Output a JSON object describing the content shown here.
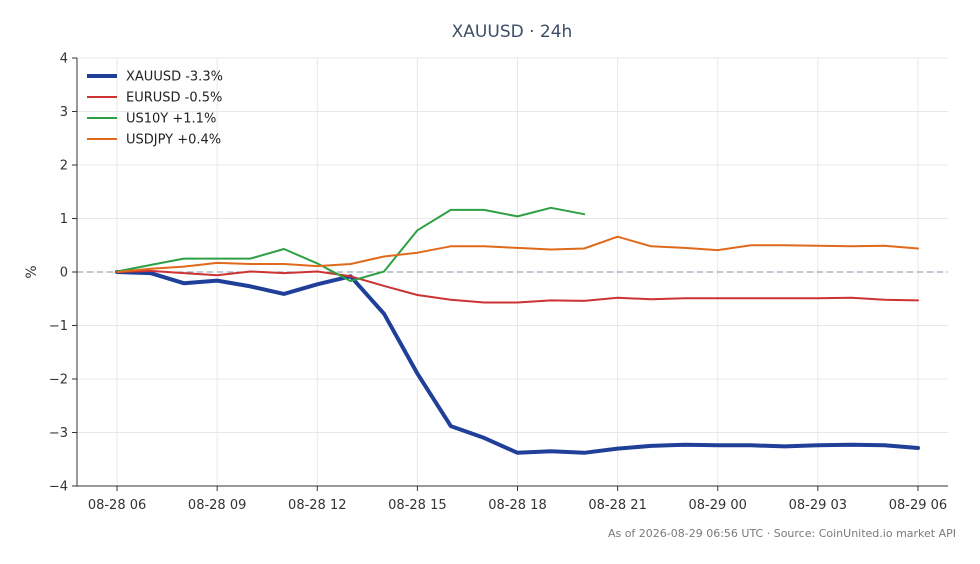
{
  "chart_data": {
    "type": "line",
    "title": "XAUUSD · 24h",
    "ylabel": "%",
    "xlabel": "",
    "ylim": [
      -4,
      4
    ],
    "yticks": [
      4,
      3,
      2,
      1,
      0,
      -1,
      -2,
      -3,
      -4
    ],
    "ytick_labels": [
      "4",
      "3",
      "2",
      "1",
      "0",
      "−1",
      "−2",
      "−3",
      "−4"
    ],
    "xlim": [
      -1.2,
      24.9
    ],
    "x": [
      0,
      1,
      2,
      3,
      4,
      5,
      6,
      7,
      8,
      9,
      10,
      11,
      12,
      13,
      14,
      15,
      16,
      17,
      18,
      19,
      20,
      21,
      22,
      23,
      24
    ],
    "xticks": [
      0,
      3,
      6,
      9,
      12,
      15,
      18,
      21,
      24
    ],
    "xtick_labels": [
      "08-28 06",
      "08-28 09",
      "08-28 12",
      "08-28 15",
      "08-28 18",
      "08-28 21",
      "08-29 00",
      "08-29 03",
      "08-29 06"
    ],
    "grid": true,
    "zero_line": true,
    "legend_position": "top-left",
    "series": [
      {
        "name": "XAUUSD -3.3%",
        "color": "#1f3f99",
        "line_width": 4,
        "values": [
          0,
          -0.02,
          -0.21,
          -0.16,
          -0.27,
          -0.41,
          -0.23,
          -0.08,
          -0.78,
          -1.9,
          -2.88,
          -3.1,
          -3.38,
          -3.35,
          -3.38,
          -3.3,
          -3.25,
          -3.23,
          -3.24,
          -3.24,
          -3.26,
          -3.24,
          -3.23,
          -3.24,
          -3.29
        ]
      },
      {
        "name": "EURUSD -0.5%",
        "color": "#cc3333",
        "line_width": 2,
        "values": [
          0,
          0.02,
          -0.02,
          -0.06,
          0.01,
          -0.02,
          0.01,
          -0.08,
          -0.26,
          -0.43,
          -0.52,
          -0.57,
          -0.57,
          -0.53,
          -0.54,
          -0.48,
          -0.51,
          -0.49,
          -0.49,
          -0.49,
          -0.49,
          -0.49,
          -0.48,
          -0.52,
          -0.53
        ]
      },
      {
        "name": "US10Y +1.1%",
        "color": "#2ea043",
        "line_width": 2,
        "values": [
          0.01,
          0.13,
          0.25,
          0.25,
          0.25,
          0.43,
          0.16,
          -0.17,
          0.01,
          0.78,
          1.16,
          1.16,
          1.04,
          1.2,
          1.08,
          null,
          null,
          null,
          null,
          null,
          null,
          null,
          null,
          null,
          null
        ]
      },
      {
        "name": "USDJPY +0.4%",
        "color": "#e06a1b",
        "line_width": 2,
        "values": [
          0,
          0.06,
          0.1,
          0.17,
          0.15,
          0.15,
          0.11,
          0.15,
          0.29,
          0.36,
          0.48,
          0.48,
          0.45,
          0.42,
          0.44,
          0.66,
          0.48,
          0.45,
          0.41,
          0.5,
          0.5,
          0.49,
          0.48,
          0.49,
          0.44
        ]
      }
    ]
  },
  "footer": {
    "text": "As of 2026-08-29 06:56 UTC · Source: CoinUnited.io market API"
  }
}
